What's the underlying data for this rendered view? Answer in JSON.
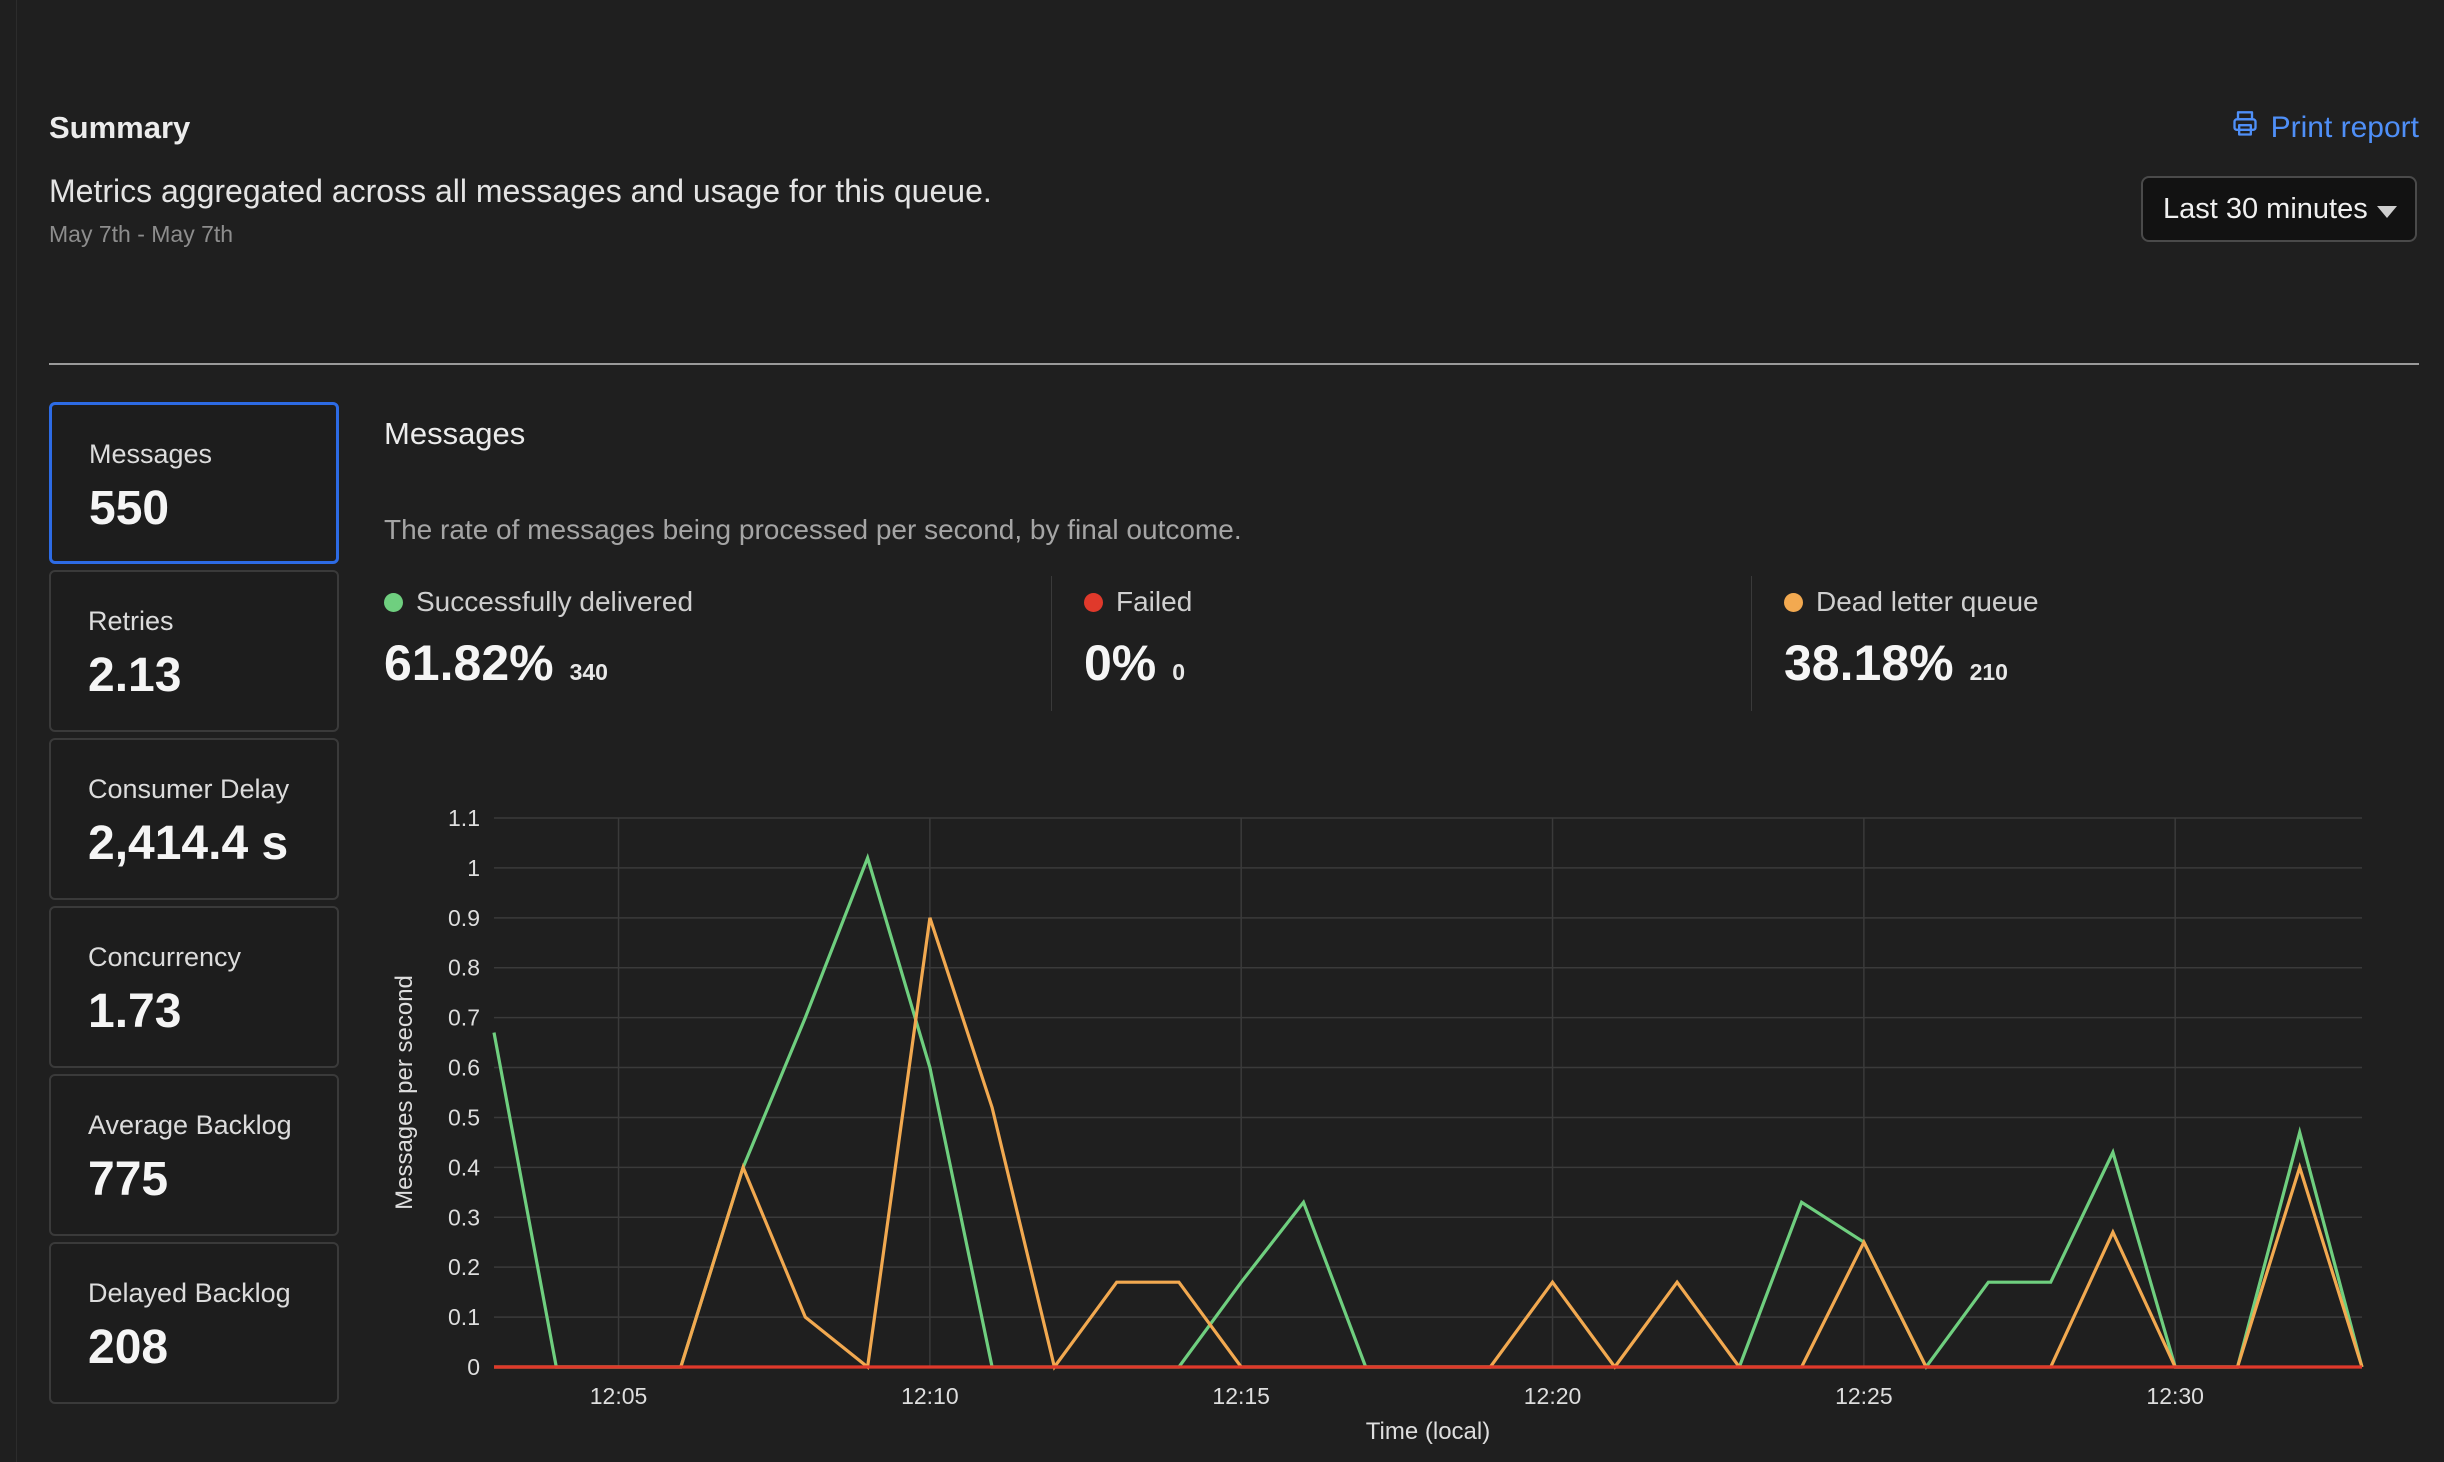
{
  "summary": {
    "title": "Summary",
    "description": "Metrics aggregated across all messages and usage for this queue.",
    "date_range": "May 7th - May 7th",
    "print_label": "Print report",
    "time_range": "Last 30 minutes"
  },
  "metrics": [
    {
      "label": "Messages",
      "value": "550",
      "active": true
    },
    {
      "label": "Retries",
      "value": "2.13"
    },
    {
      "label": "Consumer Delay",
      "value": "2,414.4 s"
    },
    {
      "label": "Concurrency",
      "value": "1.73"
    },
    {
      "label": "Average Backlog",
      "value": "775"
    },
    {
      "label": "Delayed Backlog",
      "value": "208"
    }
  ],
  "panel": {
    "title": "Messages",
    "description": "The rate of messages being processed per second, by final outcome."
  },
  "outcomes": [
    {
      "label": "Successfully delivered",
      "percent": "61.82%",
      "count": "340",
      "color": "#6fcf7f"
    },
    {
      "label": "Failed",
      "percent": "0%",
      "count": "0",
      "color": "#e0392b"
    },
    {
      "label": "Dead letter queue",
      "percent": "38.18%",
      "count": "210",
      "color": "#f2a950"
    }
  ],
  "chart_data": {
    "type": "line",
    "xlabel": "Time (local)",
    "ylabel": "Messages per second",
    "ylim": [
      0,
      1.1
    ],
    "yticks": [
      "0",
      "0.1",
      "0.2",
      "0.3",
      "0.4",
      "0.5",
      "0.6",
      "0.7",
      "0.8",
      "0.9",
      "1",
      "1.1"
    ],
    "x": [
      "12:03",
      "12:04",
      "12:05",
      "12:06",
      "12:07",
      "12:08",
      "12:09",
      "12:10",
      "12:11",
      "12:12",
      "12:13",
      "12:14",
      "12:15",
      "12:16",
      "12:17",
      "12:18",
      "12:19",
      "12:20",
      "12:21",
      "12:22",
      "12:23",
      "12:24",
      "12:25",
      "12:26",
      "12:27",
      "12:28",
      "12:29",
      "12:30",
      "12:31",
      "12:32",
      "12:33"
    ],
    "xtick_labels": [
      "12:05",
      "12:10",
      "12:15",
      "12:20",
      "12:25",
      "12:30"
    ],
    "series": [
      {
        "name": "Successfully delivered",
        "color": "#6fcf7f",
        "values": [
          0.67,
          0,
          0,
          0,
          0.4,
          0.7,
          1.02,
          0.6,
          0,
          0,
          0,
          0,
          0.17,
          0.33,
          0,
          0,
          0,
          0,
          0,
          0,
          0,
          0.33,
          0.25,
          0,
          0.17,
          0.17,
          0.43,
          0,
          0,
          0.47,
          0
        ]
      },
      {
        "name": "Dead letter queue",
        "color": "#f2a950",
        "values": [
          0,
          0,
          0,
          0,
          0.4,
          0.1,
          0,
          0.9,
          0.52,
          0,
          0.17,
          0.17,
          0,
          0,
          0,
          0,
          0,
          0.17,
          0,
          0.17,
          0,
          0,
          0.25,
          0,
          0,
          0,
          0.27,
          0,
          0,
          0.4,
          0
        ]
      },
      {
        "name": "Failed",
        "color": "#e0392b",
        "values": [
          0,
          0,
          0,
          0,
          0,
          0,
          0,
          0,
          0,
          0,
          0,
          0,
          0,
          0,
          0,
          0,
          0,
          0,
          0,
          0,
          0,
          0,
          0,
          0,
          0,
          0,
          0,
          0,
          0,
          0,
          0
        ]
      }
    ],
    "grid": true,
    "legend": "none"
  }
}
